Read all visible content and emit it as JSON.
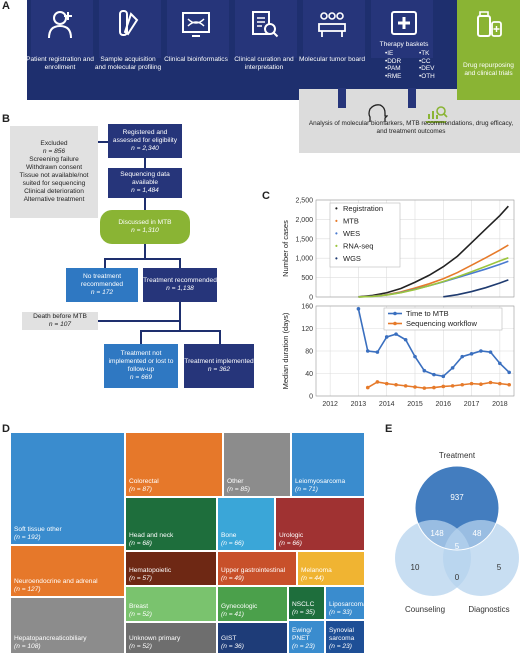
{
  "panels": {
    "a": "A",
    "b": "B",
    "c": "C",
    "d": "D",
    "e": "E"
  },
  "panel_a": {
    "steps": [
      {
        "label": "Patient registration and enrollment",
        "icon": "patient-icon"
      },
      {
        "label": "Sample acquisition and molecular profiling",
        "icon": "sample-tube-icon"
      },
      {
        "label": "Clinical bioinformatics",
        "icon": "dna-screen-icon"
      },
      {
        "label": "Clinical curation and interpretation",
        "icon": "document-search-icon"
      },
      {
        "label": "Molecular tumor board",
        "icon": "meeting-icon"
      },
      {
        "label": "Therapy baskets",
        "icon": "medical-cross-icon"
      },
      {
        "label": "Drug repurposing and clinical trials",
        "icon": "drug-bottle-icon"
      }
    ],
    "baskets": [
      "•IE",
      "•TK",
      "•DDR",
      "•CC",
      "•PAM",
      "•DEV",
      "•RME",
      "•OTH"
    ],
    "analysis": "Analysis of molecular biomarkers, MTB recommendations, drug efficacy, and treatment outcomes"
  },
  "panel_b": {
    "excluded": {
      "title": "Excluded",
      "n": "n = 856",
      "reasons": [
        "Screening failure",
        "Withdrawn consent",
        "Tissue not available/not suited for sequencing",
        "Clinical deterioration",
        "Alternative treatment"
      ]
    },
    "registered": {
      "title": "Registered and assessed for eligibility",
      "n": "n = 2,340"
    },
    "sequencing": {
      "title": "Sequencing data available",
      "n": "n = 1,484"
    },
    "discussed": {
      "title": "Discussed in MTB",
      "n": "n = 1,310"
    },
    "no_treatment": {
      "title": "No treatment recommended",
      "n": "n = 172"
    },
    "treatment": {
      "title": "Treatment recommended",
      "n": "n = 1,138"
    },
    "death": {
      "title": "Death before MTB",
      "n": "n = 107"
    },
    "not_implemented": {
      "title": "Treatment not implemented or lost to follow-up",
      "n": "n = 669"
    },
    "implemented": {
      "title": "Treatment implemented",
      "n": "n = 362"
    }
  },
  "chart_data": [
    {
      "type": "line",
      "ylabel": "Number of cases",
      "ylim": [
        0,
        2500
      ],
      "yticks": [
        "0",
        "500",
        "1,000",
        "1,500",
        "2,000",
        "2,500"
      ],
      "legend_position": "top-left",
      "grid": true,
      "series": [
        {
          "name": "Registration",
          "color": "#222222",
          "x": [
            2013.0,
            2013.5,
            2014.0,
            2014.5,
            2015.0,
            2015.5,
            2016.0,
            2016.5,
            2017.0,
            2017.5,
            2018.0,
            2018.3
          ],
          "values": [
            5,
            40,
            110,
            220,
            380,
            560,
            780,
            1050,
            1400,
            1750,
            2100,
            2340
          ]
        },
        {
          "name": "MTB",
          "color": "#e67a2a",
          "x": [
            2013.0,
            2013.5,
            2014.0,
            2014.5,
            2015.0,
            2015.5,
            2016.0,
            2016.5,
            2017.0,
            2017.5,
            2018.0,
            2018.3
          ],
          "values": [
            2,
            20,
            60,
            130,
            230,
            340,
            470,
            630,
            820,
            1010,
            1210,
            1340
          ]
        },
        {
          "name": "WES",
          "color": "#4a7bd0",
          "x": [
            2013.0,
            2013.5,
            2014.0,
            2014.5,
            2015.0,
            2015.5,
            2016.0,
            2016.5,
            2017.0,
            2017.5,
            2018.0,
            2018.3
          ],
          "values": [
            2,
            18,
            55,
            115,
            200,
            290,
            390,
            500,
            610,
            720,
            840,
            920
          ]
        },
        {
          "name": "RNA-seq",
          "color": "#9bc53d",
          "x": [
            2013.0,
            2013.5,
            2014.0,
            2014.5,
            2015.0,
            2015.5,
            2016.0,
            2016.5,
            2017.0,
            2017.5,
            2018.0,
            2018.3
          ],
          "values": [
            1,
            15,
            50,
            110,
            190,
            290,
            400,
            520,
            650,
            790,
            930,
            1010
          ]
        },
        {
          "name": "WGS",
          "color": "#1f3b70",
          "x": [
            2016.0,
            2016.5,
            2017.0,
            2017.5,
            2018.0,
            2018.3
          ],
          "values": [
            5,
            60,
            140,
            240,
            360,
            440
          ]
        }
      ]
    },
    {
      "type": "line",
      "ylabel": "Median duration (days)",
      "ylim": [
        0,
        160
      ],
      "yticks": [
        "0",
        "40",
        "80",
        "120",
        "160"
      ],
      "xticks": [
        "2012",
        "2013",
        "2014",
        "2015",
        "2016",
        "2017",
        "2018"
      ],
      "xlim": [
        2011.5,
        2018.5
      ],
      "legend_position": "top-right",
      "grid": true,
      "series": [
        {
          "name": "Time to MTB",
          "color": "#3a6fbf",
          "x": [
            2013.0,
            2013.33,
            2013.67,
            2014.0,
            2014.33,
            2014.67,
            2015.0,
            2015.33,
            2015.67,
            2016.0,
            2016.33,
            2016.67,
            2017.0,
            2017.33,
            2017.67,
            2018.0,
            2018.33
          ],
          "values": [
            155,
            80,
            78,
            105,
            110,
            100,
            70,
            45,
            38,
            35,
            50,
            70,
            75,
            80,
            78,
            58,
            42
          ]
        },
        {
          "name": "Sequencing workflow",
          "color": "#e67a2a",
          "x": [
            2013.33,
            2013.67,
            2014.0,
            2014.33,
            2014.67,
            2015.0,
            2015.33,
            2015.67,
            2016.0,
            2016.33,
            2016.67,
            2017.0,
            2017.33,
            2017.67,
            2018.0,
            2018.33
          ],
          "values": [
            15,
            25,
            22,
            20,
            18,
            16,
            14,
            15,
            17,
            18,
            20,
            22,
            21,
            24,
            22,
            20
          ]
        }
      ]
    },
    {
      "type": "heatmap",
      "name": "treemap",
      "tiles": [
        {
          "label": "Soft tissue other",
          "n": "(n = 192)",
          "color": "#3a8cce"
        },
        {
          "label": "Colorectal",
          "n": "(n = 87)",
          "color": "#e6782a"
        },
        {
          "label": "Other",
          "n": "(n = 85)",
          "color": "#8c8c8c"
        },
        {
          "label": "Leiomyosarcoma",
          "n": "(n = 71)",
          "color": "#3a8cce"
        },
        {
          "label": "Neuroendocrine and adrenal",
          "n": "(n = 127)",
          "color": "#e6782a"
        },
        {
          "label": "Head and neck",
          "n": "(n = 68)",
          "color": "#1e6e3c"
        },
        {
          "label": "Bone",
          "n": "(n = 66)",
          "color": "#3aa6d8"
        },
        {
          "label": "Urologic",
          "n": "(n = 66)",
          "color": "#a03232"
        },
        {
          "label": "Hematopoietic",
          "n": "(n = 57)",
          "color": "#6e2814"
        },
        {
          "label": "Upper gastrointestinal",
          "n": "(n = 49)",
          "color": "#c8502a"
        },
        {
          "label": "Melanoma",
          "n": "(n = 44)",
          "color": "#f0b432"
        },
        {
          "label": "Hepatopancreaticobiliary",
          "n": "(n = 108)",
          "color": "#8c8c8c"
        },
        {
          "label": "Breast",
          "n": "(n = 52)",
          "color": "#7ac36e"
        },
        {
          "label": "Gynecologic",
          "n": "(n = 41)",
          "color": "#4ba04b"
        },
        {
          "label": "NSCLC",
          "n": "(n = 35)",
          "color": "#1e6e3c"
        },
        {
          "label": "Liposarcoma",
          "n": "(n = 33)",
          "color": "#3a8cce"
        },
        {
          "label": "Unknown primary",
          "n": "(n = 52)",
          "color": "#6e6e6e"
        },
        {
          "label": "GIST",
          "n": "(n = 36)",
          "color": "#1e3c78"
        },
        {
          "label": "Ewing/ PNET",
          "n": "(n = 23)",
          "color": "#3a8cce"
        },
        {
          "label": "Synovial sarcoma",
          "n": "(n = 23)",
          "color": "#1e4f96"
        }
      ]
    }
  ],
  "panel_e": {
    "sets": {
      "treatment": "Treatment",
      "counseling": "Counseling",
      "diagnostics": "Diagnostics"
    },
    "values": {
      "t_only": "937",
      "tc": "148",
      "td": "48",
      "tcd": "5",
      "c_only": "10",
      "d_only": "5",
      "cd": "0"
    }
  }
}
